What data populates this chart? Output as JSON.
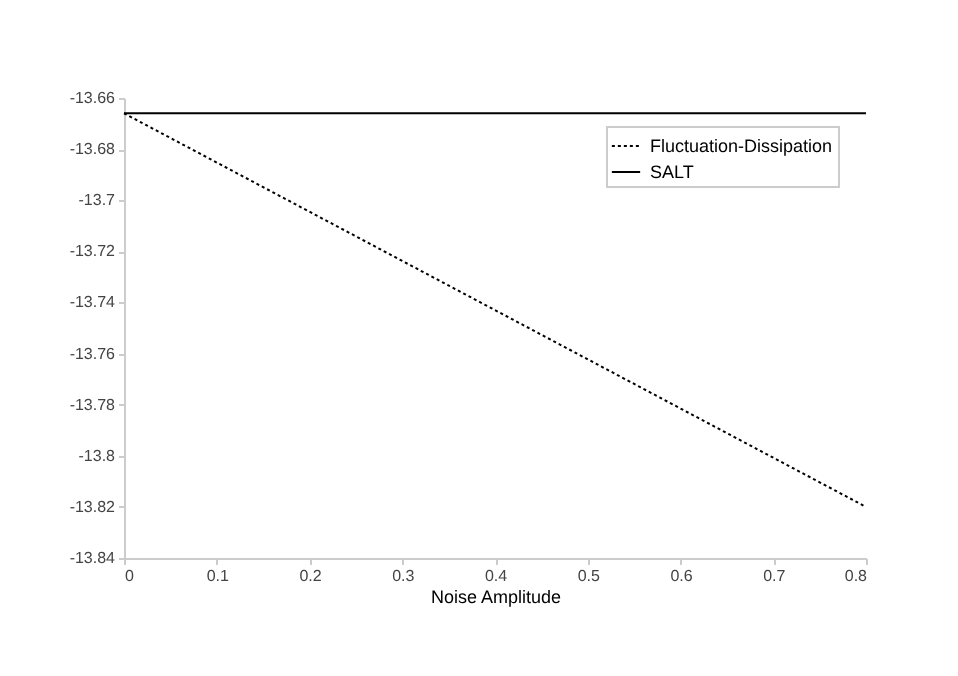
{
  "chart_data": {
    "type": "line",
    "xlabel": "Noise Amplitude",
    "x": [
      0,
      0.8
    ],
    "series": [
      {
        "name": "Fluctuation-Dissipation",
        "color": "#000000",
        "line_style": "dotted",
        "values": [
          -13.666,
          -13.82
        ]
      },
      {
        "name": "SALT",
        "color": "#000000",
        "line_style": "solid",
        "values": [
          -13.666,
          -13.666
        ]
      }
    ],
    "xlim": [
      0,
      0.8
    ],
    "xticks": [
      0,
      0.1,
      0.2,
      0.3,
      0.4,
      0.5,
      0.6,
      0.7,
      0.8
    ],
    "ylim": [
      -13.84,
      -13.66
    ],
    "yticks": [
      -13.84,
      -13.82,
      -13.8,
      -13.78,
      -13.76,
      -13.74,
      -13.72,
      -13.7,
      -13.68,
      -13.66
    ],
    "grid": false,
    "legend": "top right"
  }
}
